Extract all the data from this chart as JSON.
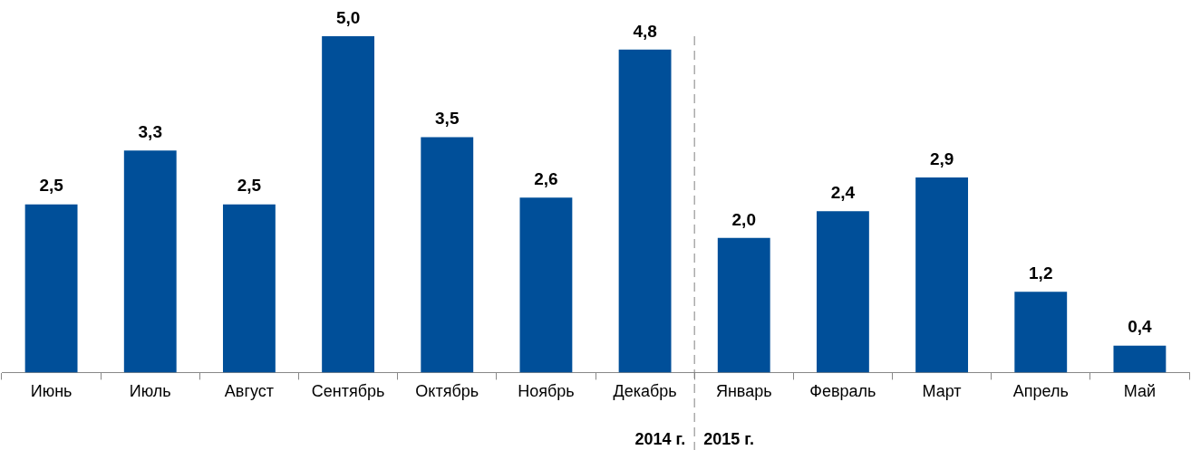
{
  "chart_data": {
    "type": "bar",
    "categories": [
      "Июнь",
      "Июль",
      "Август",
      "Сентябрь",
      "Октябрь",
      "Ноябрь",
      "Декабрь",
      "Январь",
      "Февраль",
      "Март",
      "Апрель",
      "Май"
    ],
    "values": [
      2.5,
      3.3,
      2.5,
      5.0,
      3.5,
      2.6,
      4.8,
      2.0,
      2.4,
      2.9,
      1.2,
      0.4
    ],
    "value_labels": [
      "2,5",
      "3,3",
      "2,5",
      "5,0",
      "3,5",
      "2,6",
      "4,8",
      "2,0",
      "2,4",
      "2,9",
      "1,2",
      "0,4"
    ],
    "color": "#004f99",
    "grid": false,
    "legend": false,
    "tick_labels": "x",
    "annotations": [
      "2014 г.",
      "2015 г."
    ]
  }
}
